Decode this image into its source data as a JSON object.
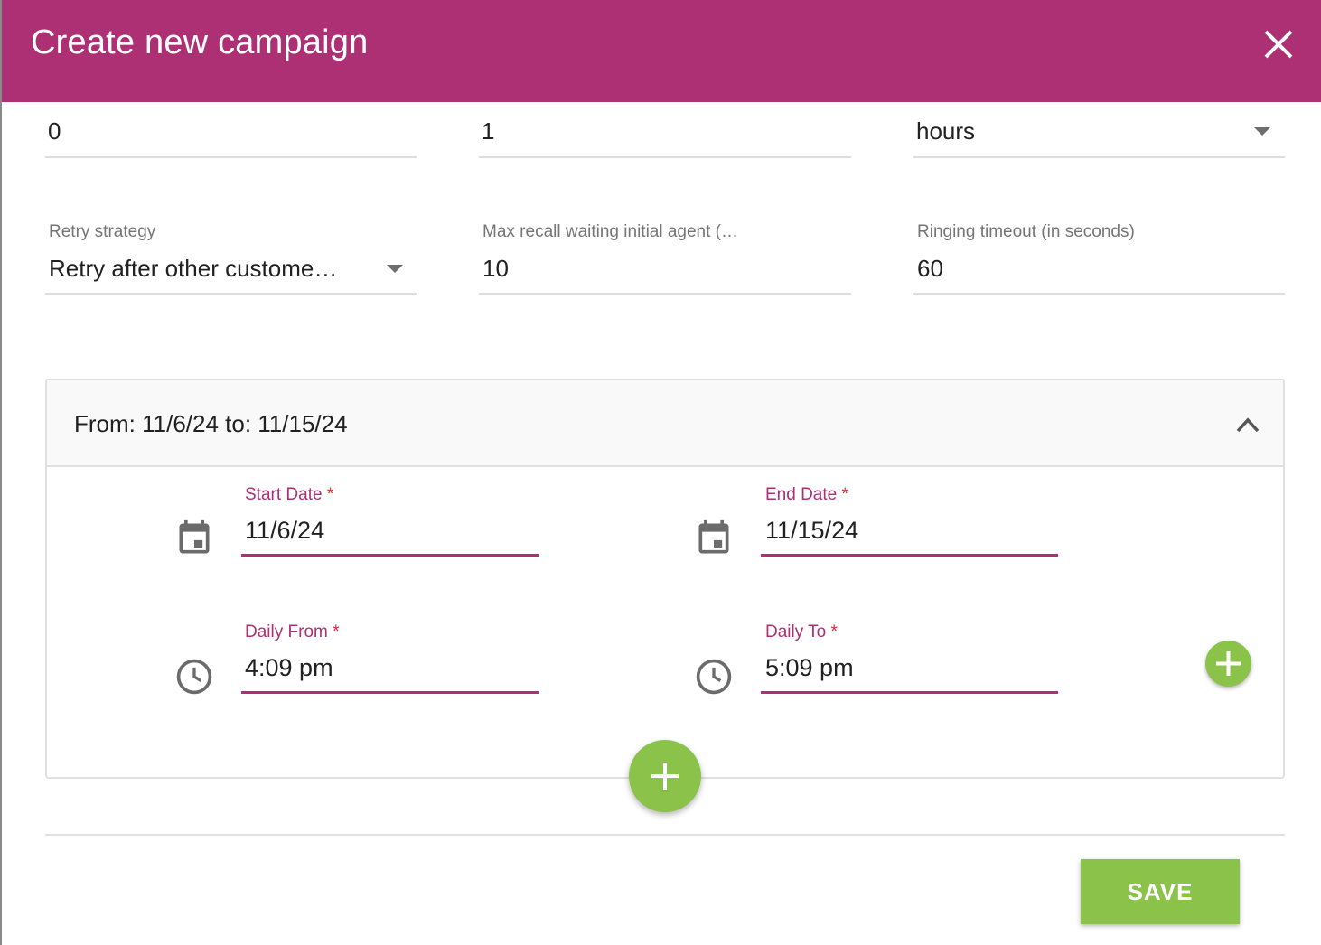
{
  "dialog": {
    "title": "Create new campaign",
    "close_icon": "close-icon"
  },
  "row1": {
    "field1_value": "0",
    "field2_value": "1",
    "field3_value": "hours"
  },
  "row2": {
    "retry_strategy": {
      "label": "Retry strategy",
      "value": "Retry after other custome…"
    },
    "max_recall": {
      "label": "Max recall waiting initial agent (…",
      "value": "10"
    },
    "ringing_timeout": {
      "label": "Ringing timeout (in seconds)",
      "value": "60"
    }
  },
  "schedule": {
    "summary": "From: 11/6/24 to: 11/15/24",
    "start_date": {
      "label": "Start Date",
      "value": "11/6/24"
    },
    "end_date": {
      "label": "End Date",
      "value": "11/15/24"
    },
    "daily_from": {
      "label": "Daily From",
      "value": "4:09 pm"
    },
    "daily_to": {
      "label": "Daily To",
      "value": "5:09 pm"
    },
    "required_marker": "*"
  },
  "footer": {
    "save_label": "SAVE"
  },
  "colors": {
    "header": "#ad3074",
    "accent": "#ad3074",
    "add_button": "#8bc34a",
    "required": "#d32f2f"
  }
}
